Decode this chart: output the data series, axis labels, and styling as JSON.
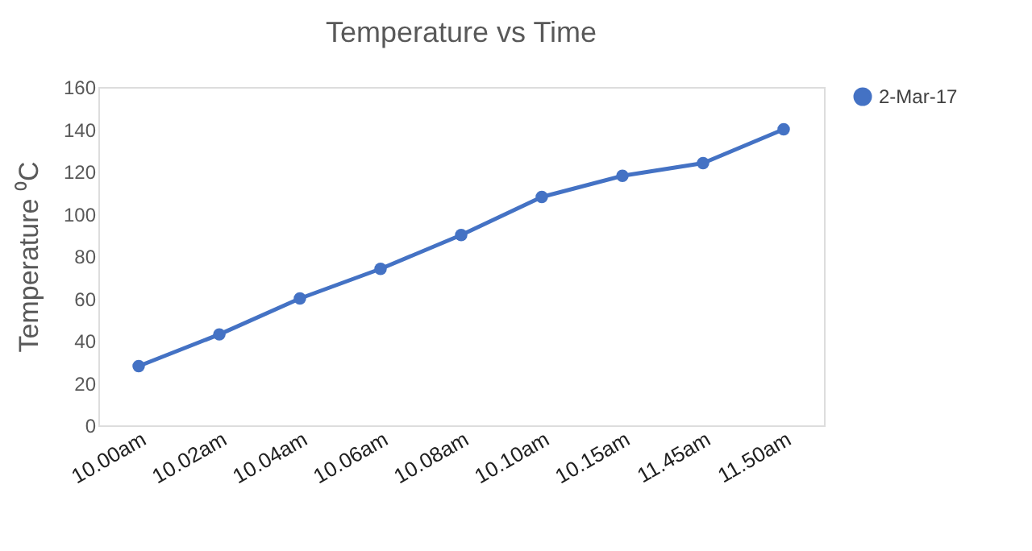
{
  "chart_data": {
    "type": "line",
    "title": "Temperature vs Time",
    "ylabel": "Temperature ⁰C",
    "categories": [
      "10.00am",
      "10.02am",
      "10.04am",
      "10.06am",
      "10.08am",
      "10.10am",
      "10.15am",
      "11.45am",
      "11.50am"
    ],
    "series": [
      {
        "name": "2-Mar-17",
        "color": "#4472c4",
        "values": [
          28,
          43,
          60,
          74,
          90,
          108,
          118,
          124,
          140
        ]
      }
    ],
    "ylim": [
      0,
      160
    ],
    "yticks": [
      0,
      20,
      40,
      60,
      80,
      100,
      120,
      140,
      160
    ],
    "grid": false,
    "legend": "right",
    "marker": "circle",
    "line_style": "solid"
  }
}
